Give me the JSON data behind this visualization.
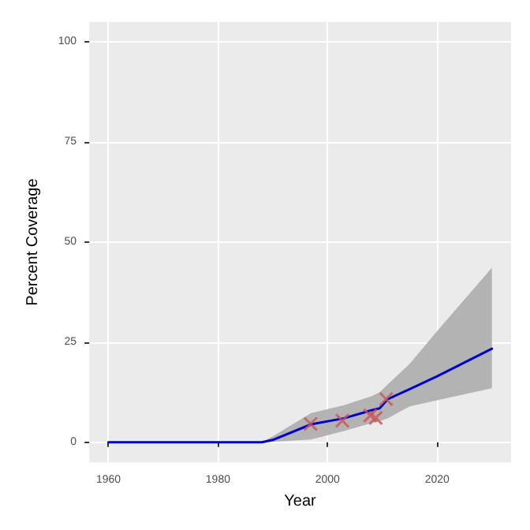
{
  "chart_data": {
    "type": "line",
    "xlabel": "Year",
    "ylabel": "Percent Coverage",
    "xlim": [
      1956.5,
      2033.5
    ],
    "ylim": [
      -5,
      105
    ],
    "xticks": [
      1960,
      1980,
      2000,
      2020
    ],
    "yticks": [
      0,
      25,
      50,
      75,
      100
    ],
    "grid": true,
    "series": [
      {
        "color": "#0000cc",
        "marker": "none",
        "x": [
          1960,
          1988,
          1990,
          1997,
          2003,
          2008,
          2009.5,
          2011,
          2015,
          2020,
          2030
        ],
        "values": [
          0,
          0,
          0.6,
          4.5,
          6,
          8,
          8.5,
          10.8,
          13.3,
          16.5,
          23.4
        ],
        "lower": [
          0,
          0,
          0.1,
          0.7,
          2.8,
          4.8,
          5.3,
          6,
          9,
          10.5,
          13.5
        ],
        "upper": [
          0,
          0,
          1.5,
          7.3,
          9.3,
          11.5,
          12.5,
          14.5,
          19.6,
          27.8,
          43.6
        ]
      },
      {
        "type": "scatter",
        "color": "#cc5555",
        "marker": "cross",
        "x": [
          1996.9,
          2002.7,
          2007.8,
          2008.8,
          2010.7
        ],
        "values": [
          4.6,
          5.4,
          6.7,
          6.1,
          10.8
        ]
      }
    ]
  }
}
